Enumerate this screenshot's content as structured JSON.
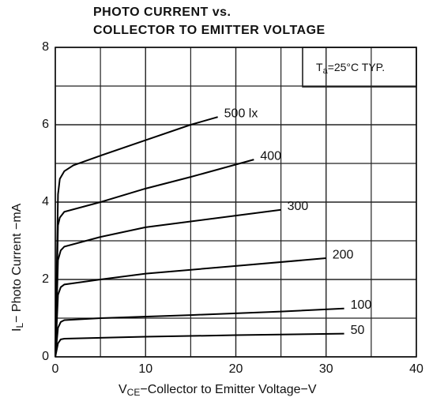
{
  "chart_data": {
    "type": "line",
    "title": [
      "PHOTO CURRENT vs.",
      "COLLECTOR TO EMITTER VOLTAGE"
    ],
    "annotation": [
      "T",
      "a",
      "=25°C  TYP."
    ],
    "xlabel": [
      "V",
      "CE",
      "−Collector to Emitter Voltage−V"
    ],
    "ylabel": [
      "I",
      "L",
      "− Photo Current −mA"
    ],
    "xlim": [
      0,
      40
    ],
    "ylim": [
      0,
      8
    ],
    "xticks": [
      0,
      10,
      20,
      30,
      40
    ],
    "yticks": [
      0,
      2,
      4,
      6,
      8
    ],
    "x_minor_ticks": [
      5,
      15,
      25,
      35
    ],
    "y_minor_ticks": [
      1,
      3,
      5,
      7
    ],
    "grid": true,
    "color": "#000000",
    "series": [
      {
        "name": "500 lx",
        "x": [
          0,
          0.3,
          0.5,
          1,
          2,
          5,
          10,
          15,
          18
        ],
        "values": [
          0,
          4.2,
          4.6,
          4.8,
          4.95,
          5.2,
          5.6,
          6.0,
          6.2
        ]
      },
      {
        "name": "400",
        "x": [
          0,
          0.3,
          0.5,
          1,
          5,
          10,
          15,
          22
        ],
        "values": [
          0,
          3.4,
          3.6,
          3.75,
          4.0,
          4.35,
          4.65,
          5.1
        ]
      },
      {
        "name": "300",
        "x": [
          0,
          0.3,
          0.6,
          1,
          5,
          10,
          15,
          20,
          25
        ],
        "values": [
          0,
          2.5,
          2.75,
          2.85,
          3.1,
          3.35,
          3.5,
          3.65,
          3.8
        ]
      },
      {
        "name": "200",
        "x": [
          0,
          0.3,
          0.6,
          1,
          5,
          10,
          20,
          30
        ],
        "values": [
          0,
          1.6,
          1.8,
          1.87,
          2.0,
          2.15,
          2.35,
          2.55
        ]
      },
      {
        "name": "100",
        "x": [
          0,
          0.3,
          0.6,
          1,
          5,
          15,
          25,
          32
        ],
        "values": [
          0,
          0.75,
          0.9,
          0.95,
          1.0,
          1.08,
          1.17,
          1.25
        ]
      },
      {
        "name": "50",
        "x": [
          0,
          0.3,
          0.6,
          1,
          10,
          20,
          32
        ],
        "values": [
          0,
          0.35,
          0.45,
          0.47,
          0.52,
          0.56,
          0.6
        ]
      }
    ]
  }
}
